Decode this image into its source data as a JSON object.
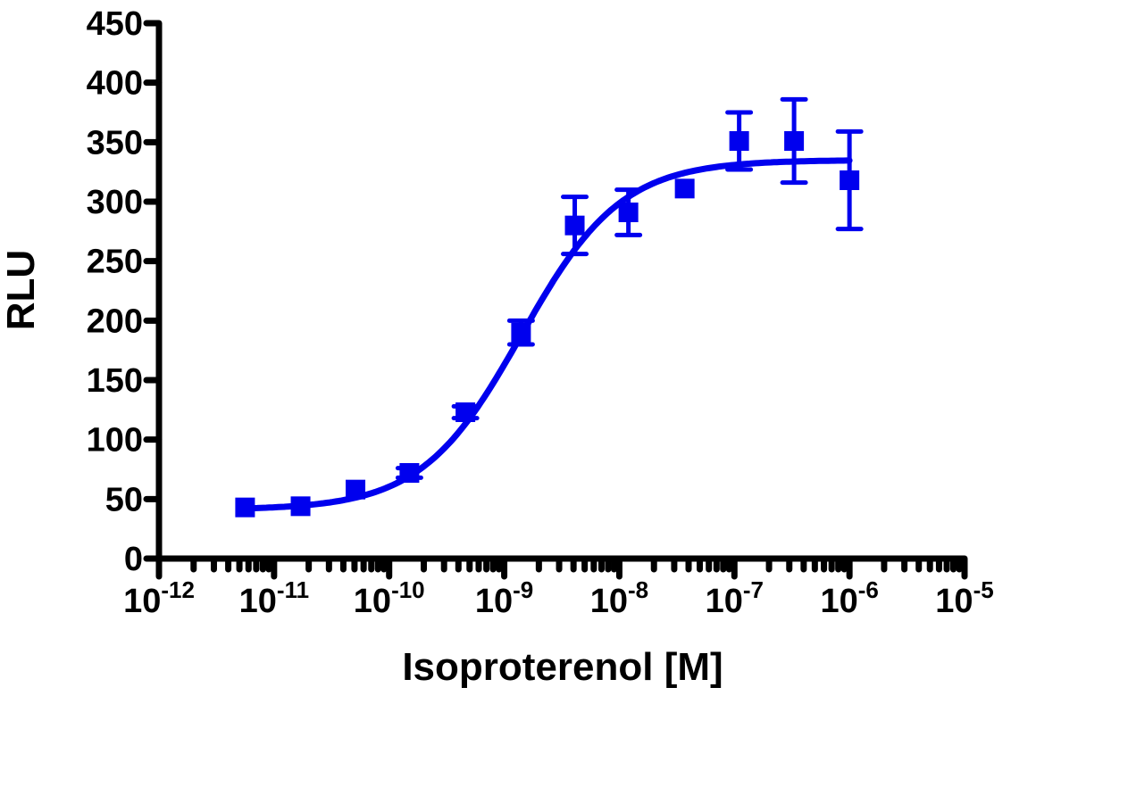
{
  "chart_data": {
    "type": "scatter",
    "title": "",
    "xlabel": "Isoproterenol [M]",
    "ylabel": "RLU",
    "x_scale": "log",
    "xlim": [
      1e-12,
      1e-05
    ],
    "ylim": [
      0,
      450
    ],
    "grid": false,
    "legend": "none",
    "x_tick_labels": [
      {
        "base": "10",
        "exp": "-12"
      },
      {
        "base": "10",
        "exp": "-11"
      },
      {
        "base": "10",
        "exp": "-10"
      },
      {
        "base": "10",
        "exp": "-9"
      },
      {
        "base": "10",
        "exp": "-8"
      },
      {
        "base": "10",
        "exp": "-7"
      },
      {
        "base": "10",
        "exp": "-6"
      },
      {
        "base": "10",
        "exp": "-5"
      }
    ],
    "y_tick_labels": [
      "0",
      "50",
      "100",
      "150",
      "200",
      "250",
      "300",
      "350",
      "400",
      "450"
    ],
    "color": "#0000ee",
    "series": [
      {
        "x": [
          5.6e-12,
          1.7e-11,
          5.1e-11,
          1.5e-10,
          4.6e-10,
          1.4e-09,
          4.1e-09,
          1.2e-08,
          3.7e-08,
          1.1e-07,
          3.3e-07,
          1e-06
        ],
        "y": [
          43,
          44,
          58,
          72,
          123,
          190,
          280,
          291,
          311,
          351,
          351,
          318
        ],
        "error": [
          2,
          2,
          3,
          4,
          5,
          10,
          24,
          19,
          3,
          24,
          35,
          41
        ],
        "marker": "square"
      }
    ],
    "fit": {
      "model": "four-parameter logistic",
      "bottom": 41,
      "top": 335,
      "log_ec50": -8.85,
      "hill_slope": 1.0
    }
  }
}
